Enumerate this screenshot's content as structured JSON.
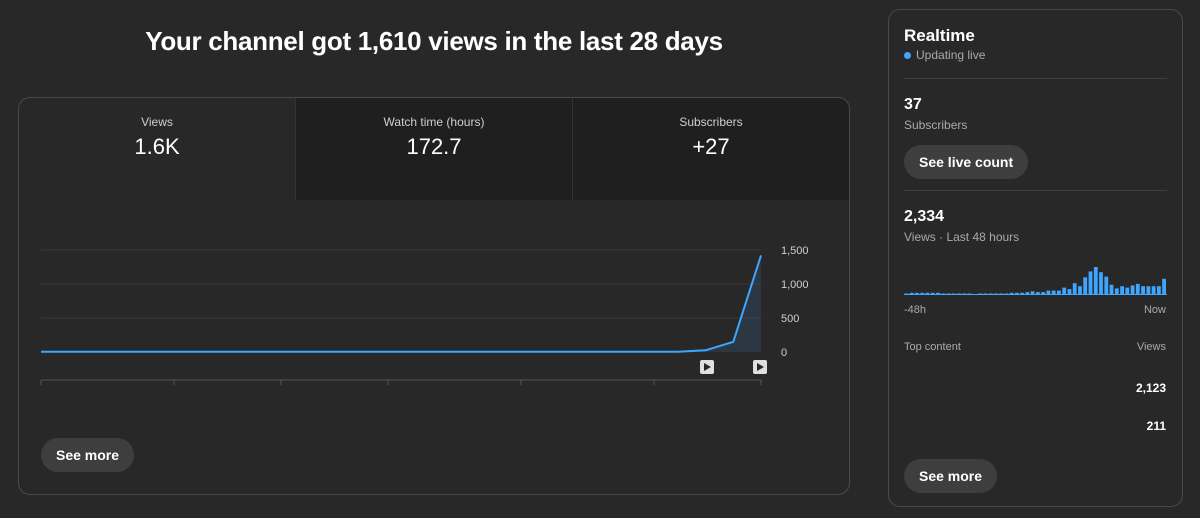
{
  "headline": "Your channel got 1,610 views in the last 28 days",
  "metrics": [
    {
      "label": "Views",
      "value": "1.6K",
      "selected": true
    },
    {
      "label": "Watch time (hours)",
      "value": "172.7",
      "selected": false
    },
    {
      "label": "Subscribers",
      "value": "+27",
      "selected": false
    }
  ],
  "chart_data": {
    "type": "area",
    "title": "",
    "xlabel": "",
    "ylabel": "",
    "ylim": [
      0,
      1500
    ],
    "y_ticks": [
      "1,500",
      "1,000",
      "500",
      "0"
    ],
    "y_tick_values": [
      1500,
      1000,
      500,
      0
    ],
    "grid": true,
    "series": [
      {
        "values": [
          5,
          5,
          5,
          5,
          5,
          5,
          5,
          5,
          5,
          5,
          5,
          5,
          5,
          5,
          5,
          5,
          5,
          5,
          5,
          5,
          5,
          5,
          5,
          5,
          25,
          150,
          1420
        ]
      }
    ],
    "line_color": "#3ea6ff",
    "upload_markers": 2
  },
  "overview_see_more": "See more",
  "realtime": {
    "title": "Realtime",
    "status": "Updating live",
    "subscribers_count": "37",
    "subscribers_label": "Subscribers",
    "see_live_count": "See live count",
    "views_count": "2,334",
    "views_label": "Views · Last 48 hours",
    "bar_values": [
      2,
      3,
      3,
      3,
      3,
      3,
      3,
      2,
      2,
      2,
      2,
      2,
      2,
      0,
      2,
      2,
      2,
      2,
      2,
      2,
      3,
      3,
      3,
      4,
      5,
      4,
      4,
      6,
      6,
      6,
      10,
      8,
      16,
      12,
      24,
      32,
      38,
      31,
      25,
      14,
      9,
      12,
      10,
      13,
      15,
      12,
      12,
      12,
      12,
      22
    ],
    "bar_color": "#3ea6ff",
    "axis_start": "-48h",
    "axis_end": "Now",
    "top_content_label": "Top content",
    "top_content_views_label": "Views",
    "top_content_values": [
      "2,123",
      "211"
    ],
    "see_more": "See more"
  }
}
